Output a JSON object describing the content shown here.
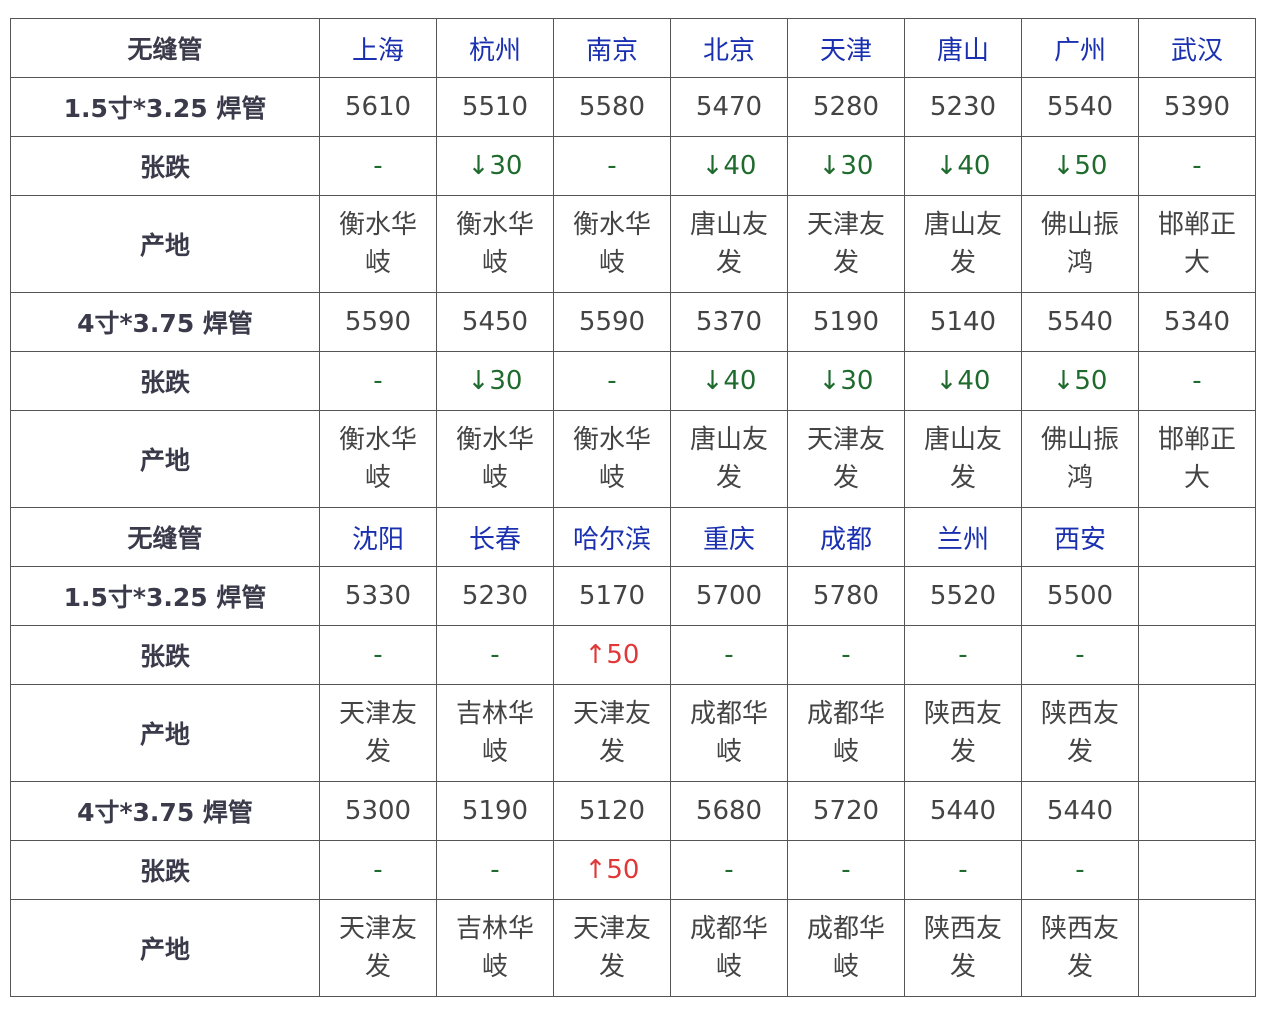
{
  "sections": [
    {
      "title": "无缝管",
      "cities": [
        "上海",
        "杭州",
        "南京",
        "北京",
        "天津",
        "唐山",
        "广州",
        "武汉"
      ],
      "products": [
        {
          "name": "1.5寸*3.25 焊管",
          "prices": [
            "5610",
            "5510",
            "5580",
            "5470",
            "5280",
            "5230",
            "5540",
            "5390"
          ],
          "change_label": "张跌",
          "changes": [
            "-",
            "↓30",
            "-",
            "↓40",
            "↓30",
            "↓40",
            "↓50",
            "-"
          ],
          "origin_label": "产地",
          "origins": [
            "衡水华岐",
            "衡水华岐",
            "衡水华岐",
            "唐山友发",
            "天津友发",
            "唐山友发",
            "佛山振鸿",
            "邯郸正大"
          ]
        },
        {
          "name": "4寸*3.75 焊管",
          "prices": [
            "5590",
            "5450",
            "5590",
            "5370",
            "5190",
            "5140",
            "5540",
            "5340"
          ],
          "change_label": "张跌",
          "changes": [
            "-",
            "↓30",
            "-",
            "↓40",
            "↓30",
            "↓40",
            "↓50",
            "-"
          ],
          "origin_label": "产地",
          "origins": [
            "衡水华岐",
            "衡水华岐",
            "衡水华岐",
            "唐山友发",
            "天津友发",
            "唐山友发",
            "佛山振鸿",
            "邯郸正大"
          ]
        }
      ]
    },
    {
      "title": "无缝管",
      "cities": [
        "沈阳",
        "长春",
        "哈尔滨",
        "重庆",
        "成都",
        "兰州",
        "西安",
        ""
      ],
      "products": [
        {
          "name": "1.5寸*3.25 焊管",
          "prices": [
            "5330",
            "5230",
            "5170",
            "5700",
            "5780",
            "5520",
            "5500",
            ""
          ],
          "change_label": "张跌",
          "changes": [
            "-",
            "-",
            "↑50",
            "-",
            "-",
            "-",
            "-",
            ""
          ],
          "origin_label": "产地",
          "origins": [
            "天津友发",
            "吉林华岐",
            "天津友发",
            "成都华岐",
            "成都华岐",
            "陕西友发",
            "陕西友发",
            ""
          ]
        },
        {
          "name": "4寸*3.75 焊管",
          "prices": [
            "5300",
            "5190",
            "5120",
            "5680",
            "5720",
            "5440",
            "5440",
            ""
          ],
          "change_label": "张跌",
          "changes": [
            "-",
            "-",
            "↑50",
            "-",
            "-",
            "-",
            "-",
            ""
          ],
          "origin_label": "产地",
          "origins": [
            "天津友发",
            "吉林华岐",
            "天津友发",
            "成都华岐",
            "成都华岐",
            "陕西友发",
            "陕西友发",
            ""
          ]
        }
      ]
    }
  ],
  "colors": {
    "title": "#e8202a",
    "city": "#1a30b0",
    "down": "#1f6b2e",
    "up": "#e03838"
  }
}
